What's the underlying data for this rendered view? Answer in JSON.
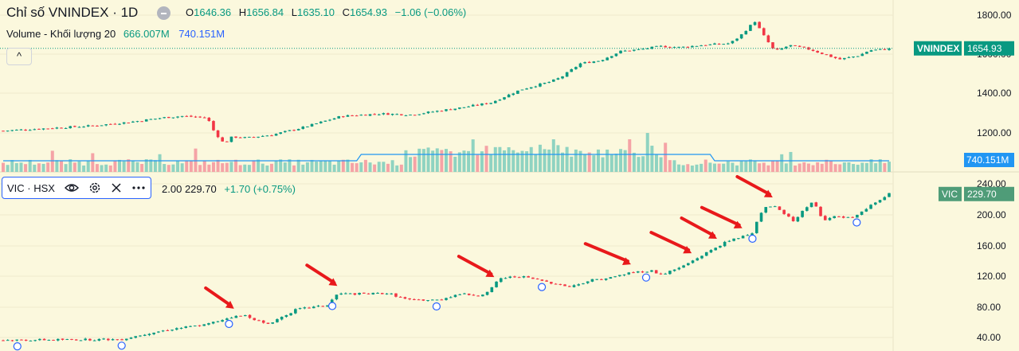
{
  "header": {
    "title": "Chỉ số VNINDEX · 1D",
    "open_label": "O",
    "open": "1646.36",
    "high_label": "H",
    "high": "1656.84",
    "low_label": "L",
    "low": "1635.10",
    "close_label": "C",
    "close": "1654.93",
    "change": "−1.06 (−0.06%)"
  },
  "volume_legend": {
    "label": "Volume - Khối lượng 20",
    "value1": "666.007M",
    "value2": "740.151M"
  },
  "collapse_button": "^",
  "vic_legend": {
    "symbol": "VIC · HSX",
    "partial_value": "2.00",
    "value": "229.70",
    "change": "+1.70 (+0.75%)",
    "icons": [
      "eye-icon",
      "gear-icon",
      "close-icon",
      "more-icon"
    ]
  },
  "colors": {
    "up": "#089981",
    "down": "#f23645",
    "vol_up": "#8fd3c1",
    "vol_down": "#f5a3a6",
    "ma": "#2196f3",
    "arrow": "#e8191b",
    "bg": "#fbf8dd"
  },
  "chart_data": [
    {
      "type": "candlestick",
      "title": "Chỉ số VNINDEX · 1D",
      "ylim": [
        1080,
        1840
      ],
      "yticks": [
        "1800.00",
        "1600.00",
        "1400.00",
        "1200.00"
      ],
      "last_label": "VNINDEX",
      "last_value": "1654.93",
      "price_path": [
        [
          0,
          1245
        ],
        [
          0.09,
          1270
        ],
        [
          0.13,
          1290
        ],
        [
          0.16,
          1310
        ],
        [
          0.18,
          1318
        ],
        [
          0.205,
          1310
        ],
        [
          0.212,
          1240
        ],
        [
          0.222,
          1180
        ],
        [
          0.23,
          1215
        ],
        [
          0.245,
          1210
        ],
        [
          0.27,
          1225
        ],
        [
          0.3,
          1260
        ],
        [
          0.34,
          1318
        ],
        [
          0.38,
          1330
        ],
        [
          0.41,
          1325
        ],
        [
          0.46,
          1360
        ],
        [
          0.49,
          1385
        ],
        [
          0.52,
          1450
        ],
        [
          0.55,
          1490
        ],
        [
          0.56,
          1510
        ],
        [
          0.58,
          1580
        ],
        [
          0.6,
          1595
        ],
        [
          0.62,
          1640
        ],
        [
          0.64,
          1650
        ],
        [
          0.66,
          1665
        ],
        [
          0.68,
          1660
        ],
        [
          0.7,
          1670
        ],
        [
          0.73,
          1680
        ],
        [
          0.74,
          1715
        ],
        [
          0.755,
          1790
        ],
        [
          0.765,
          1710
        ],
        [
          0.775,
          1640
        ],
        [
          0.79,
          1670
        ],
        [
          0.81,
          1650
        ],
        [
          0.84,
          1600
        ],
        [
          0.86,
          1620
        ],
        [
          0.87,
          1645
        ],
        [
          0.89,
          1652
        ]
      ],
      "volume_legend": "Volume - Khối lượng 20",
      "volume_last": "740.151M"
    },
    {
      "type": "candlestick",
      "title": "VIC · HSX",
      "ylim": [
        32,
        246
      ],
      "yticks": [
        "240.00",
        "200.00",
        "160.00",
        "120.00",
        "80.00",
        "40.00"
      ],
      "last_label": "VIC",
      "last_value": "229.70",
      "price_path": [
        [
          0,
          40
        ],
        [
          0.117,
          41
        ],
        [
          0.14,
          48
        ],
        [
          0.17,
          55
        ],
        [
          0.2,
          60
        ],
        [
          0.225,
          70
        ],
        [
          0.24,
          72
        ],
        [
          0.26,
          60
        ],
        [
          0.29,
          80
        ],
        [
          0.32,
          85
        ],
        [
          0.33,
          100
        ],
        [
          0.36,
          100
        ],
        [
          0.38,
          101
        ],
        [
          0.4,
          92
        ],
        [
          0.43,
          92
        ],
        [
          0.45,
          100
        ],
        [
          0.47,
          98
        ],
        [
          0.48,
          103
        ],
        [
          0.49,
          120
        ],
        [
          0.51,
          123
        ],
        [
          0.54,
          115
        ],
        [
          0.56,
          109
        ],
        [
          0.58,
          118
        ],
        [
          0.6,
          121
        ],
        [
          0.62,
          128
        ],
        [
          0.64,
          130
        ],
        [
          0.65,
          125
        ],
        [
          0.67,
          135
        ],
        [
          0.69,
          150
        ],
        [
          0.71,
          165
        ],
        [
          0.74,
          180
        ],
        [
          0.75,
          210
        ],
        [
          0.76,
          215
        ],
        [
          0.78,
          195
        ],
        [
          0.8,
          220
        ],
        [
          0.81,
          196
        ],
        [
          0.82,
          200
        ],
        [
          0.84,
          198
        ],
        [
          0.86,
          218
        ],
        [
          0.87,
          225
        ],
        [
          0.875,
          229.7
        ]
      ],
      "circle_markers_x": [
        0.014,
        0.117,
        0.223,
        0.325,
        0.428,
        0.532,
        0.635,
        0.74,
        0.843
      ],
      "annotation": "red arrows pointing at breakout candles"
    }
  ]
}
